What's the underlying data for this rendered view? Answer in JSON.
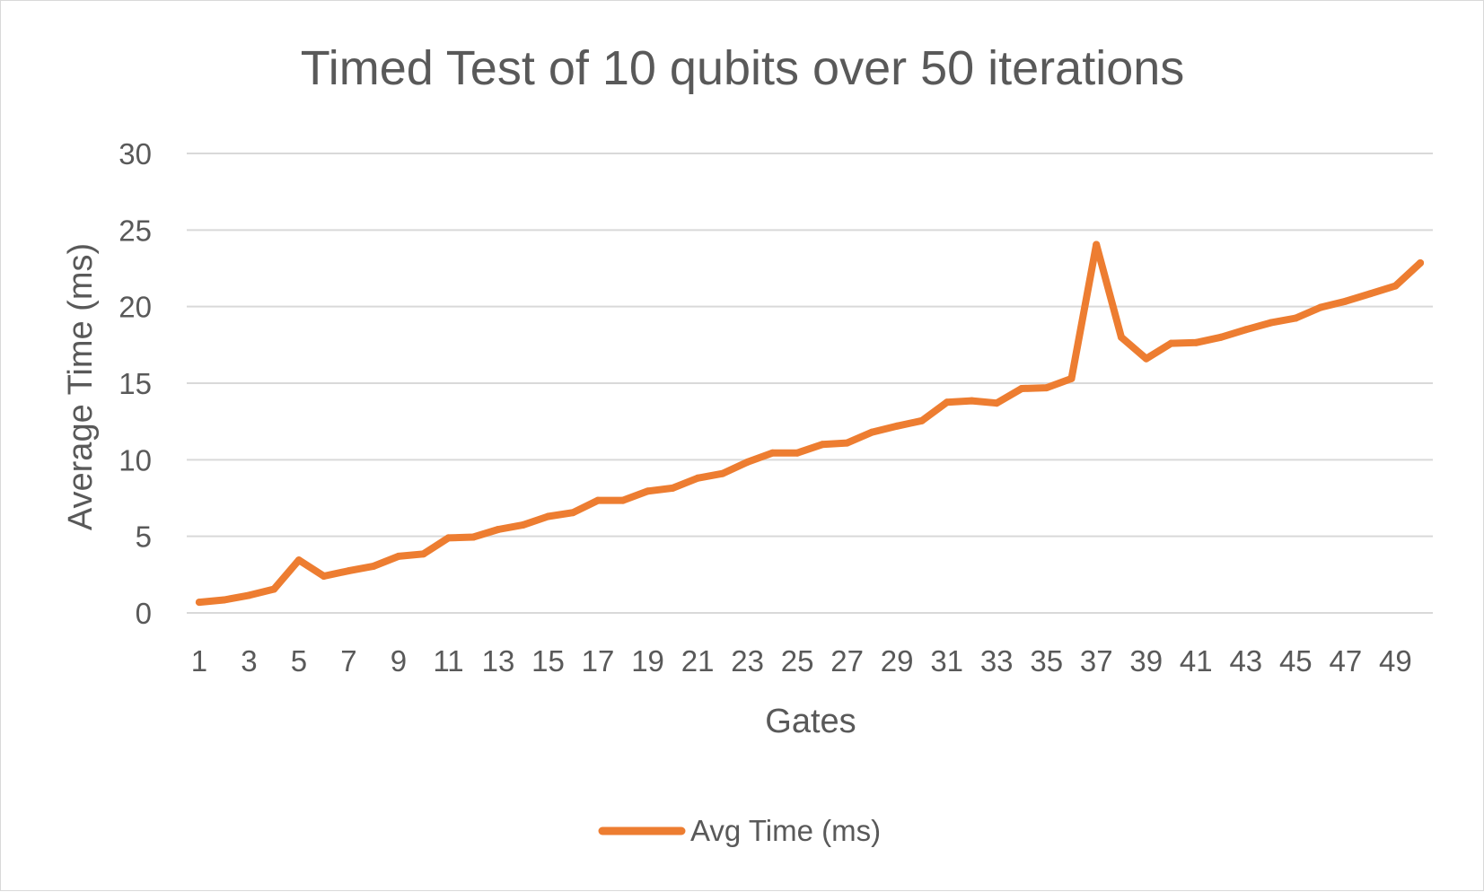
{
  "chart_data": {
    "type": "line",
    "title": "Timed Test of 10 qubits over 50 iterations",
    "xlabel": "Gates",
    "ylabel": "Average Time (ms)",
    "ylim": [
      0,
      30
    ],
    "yticks": [
      "0",
      "5",
      "10",
      "15",
      "20",
      "25",
      "30"
    ],
    "x": [
      1,
      2,
      3,
      4,
      5,
      6,
      7,
      8,
      9,
      10,
      11,
      12,
      13,
      14,
      15,
      16,
      17,
      18,
      19,
      20,
      21,
      22,
      23,
      24,
      25,
      26,
      27,
      28,
      29,
      30,
      31,
      32,
      33,
      34,
      35,
      36,
      37,
      38,
      39,
      40,
      41,
      42,
      43,
      44,
      45,
      46,
      47,
      48,
      49,
      50
    ],
    "xtick_labels": [
      "1",
      "3",
      "5",
      "7",
      "9",
      "11",
      "13",
      "15",
      "17",
      "19",
      "21",
      "23",
      "25",
      "27",
      "29",
      "31",
      "33",
      "35",
      "37",
      "39",
      "41",
      "43",
      "45",
      "47",
      "49"
    ],
    "grid": true,
    "legend": "bottom",
    "series": [
      {
        "name": "Avg Time (ms)",
        "color": "#ED7D31",
        "values": [
          0.7,
          0.85,
          1.15,
          1.55,
          3.45,
          2.4,
          2.75,
          3.05,
          3.7,
          3.85,
          4.9,
          4.95,
          5.45,
          5.75,
          6.3,
          6.55,
          7.35,
          7.35,
          7.95,
          8.15,
          8.8,
          9.1,
          9.85,
          10.45,
          10.45,
          11.0,
          11.1,
          11.8,
          12.2,
          12.55,
          13.75,
          13.85,
          13.7,
          14.65,
          14.7,
          15.3,
          24.05,
          18.0,
          16.6,
          17.6,
          17.65,
          18.0,
          18.5,
          18.95,
          19.25,
          19.95,
          20.35,
          20.85,
          21.35,
          22.85
        ]
      }
    ]
  }
}
